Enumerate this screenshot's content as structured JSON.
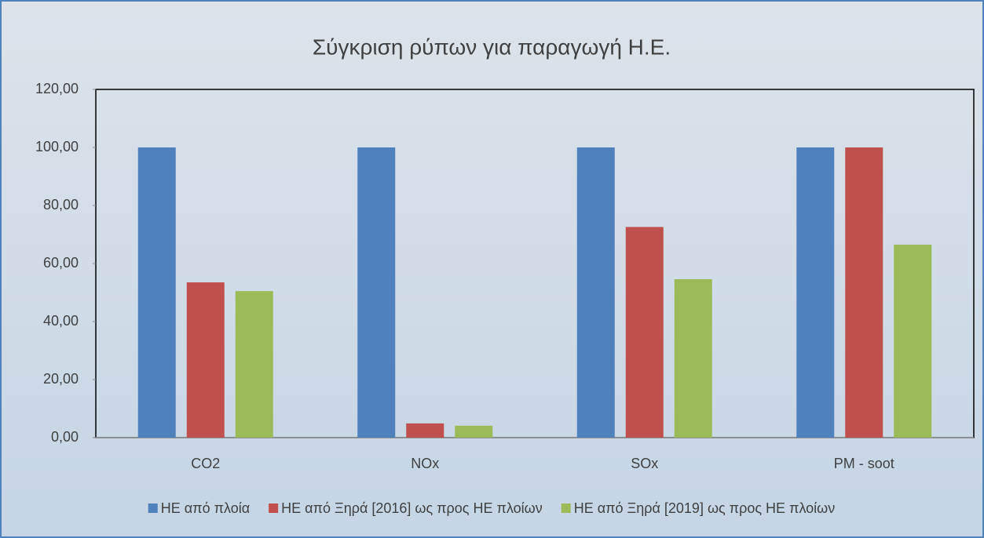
{
  "chart_data": {
    "type": "bar",
    "title": "Σύγκριση ρύπων για παραγωγή Η.Ε.",
    "categories": [
      "CO2",
      "NOx",
      "SOx",
      "PM - soot"
    ],
    "series": [
      {
        "name": "ΗΕ από πλοία",
        "color": "#4f81bd",
        "values": [
          100,
          100,
          100,
          100
        ]
      },
      {
        "name": "ΗΕ από Ξηρά [2016] ως προς ΗΕ πλοίων",
        "color": "#c0504d",
        "values": [
          53.5,
          4.9,
          72.6,
          100
        ]
      },
      {
        "name": "ΗΕ από Ξηρά [2019] ως προς ΗΕ πλοίων",
        "color": "#9bbb59",
        "values": [
          50.5,
          4.1,
          54.6,
          66.5
        ]
      }
    ],
    "ylim": [
      0,
      120
    ],
    "yticks": [
      {
        "value": 0,
        "label": "0,00"
      },
      {
        "value": 20,
        "label": "20,00"
      },
      {
        "value": 40,
        "label": "40,00"
      },
      {
        "value": 60,
        "label": "60,00"
      },
      {
        "value": 80,
        "label": "80,00"
      },
      {
        "value": 100,
        "label": "100,00"
      },
      {
        "value": 120,
        "label": "120,00"
      }
    ],
    "legend": "bottom"
  }
}
